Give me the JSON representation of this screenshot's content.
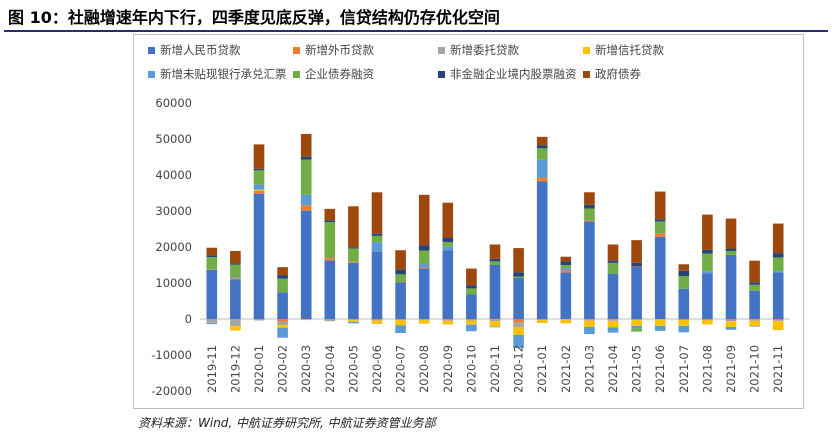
{
  "title": "图 10：社融增速年内下行，四季度见底反弹，信贷结构仍存优化空间",
  "source": "资料来源：Wind, 中航证券研究所, 中航证券资管业务部",
  "chart_data": {
    "type": "bar",
    "stacked": true,
    "ylim": [
      -20000,
      60000
    ],
    "yticks": [
      -20000,
      -10000,
      0,
      10000,
      20000,
      30000,
      40000,
      50000,
      60000
    ],
    "ytick_labels": [
      "-20000",
      "-10000",
      "0",
      "10000",
      "20000",
      "30000",
      "40000",
      "50000",
      "60000"
    ],
    "legend_position": "top",
    "categories": [
      "2019-11",
      "2019-12",
      "2020-01",
      "2020-02",
      "2020-03",
      "2020-04",
      "2020-05",
      "2020-06",
      "2020-07",
      "2020-08",
      "2020-09",
      "2020-10",
      "2020-11",
      "2020-12",
      "2021-01",
      "2021-02",
      "2021-03",
      "2021-04",
      "2021-05",
      "2021-06",
      "2021-07",
      "2021-08",
      "2021-09",
      "2021-10",
      "2021-11"
    ],
    "series": [
      {
        "name": "新增人民币贷款",
        "color": "#4472c4",
        "values": [
          13700,
          11000,
          34800,
          7400,
          30100,
          16300,
          15600,
          18700,
          10200,
          14000,
          19100,
          6800,
          15000,
          11400,
          38200,
          12900,
          27100,
          12600,
          14500,
          22800,
          8400,
          12700,
          17800,
          7800,
          12900
        ]
      },
      {
        "name": "新增外币贷款",
        "color": "#ed7d31",
        "values": [
          100,
          300,
          800,
          -700,
          1500,
          600,
          300,
          -100,
          100,
          300,
          -100,
          -100,
          -200,
          -1000,
          1100,
          600,
          300,
          -200,
          100,
          1000,
          -100,
          -100,
          -400,
          -200,
          -300
        ]
      },
      {
        "name": "新增委托贷款",
        "color": "#a5a5a5",
        "values": [
          -900,
          -2000,
          -400,
          -1000,
          -100,
          -300,
          -300,
          -300,
          -300,
          -300,
          -400,
          -300,
          -400,
          -1300,
          -300,
          -200,
          -400,
          -300,
          -300,
          -200,
          -200,
          -200,
          -200,
          -300,
          -300
        ]
      },
      {
        "name": "新增信托贷款",
        "color": "#ffc000",
        "values": [
          -100,
          -1200,
          300,
          -700,
          -200,
          -100,
          -500,
          -1000,
          -1500,
          -1000,
          -1000,
          -1200,
          -1500,
          -2100,
          -800,
          -1000,
          -1800,
          -1800,
          -1600,
          -1700,
          -1600,
          -1200,
          -1600,
          -1500,
          -2500
        ]
      },
      {
        "name": "新增未贴现银行承兑汇票",
        "color": "#5b9bd5",
        "values": [
          -400,
          300,
          1500,
          -2800,
          2900,
          -200,
          -400,
          2600,
          -2100,
          1000,
          1000,
          -1800,
          -200,
          -3600,
          4900,
          600,
          -2000,
          -1500,
          -700,
          -1400,
          -1800,
          600,
          -800,
          -100,
          400
        ]
      },
      {
        "name": "企业债券融资",
        "color": "#70ad47",
        "values": [
          3400,
          3500,
          3900,
          3800,
          9800,
          10000,
          3700,
          1800,
          2100,
          3700,
          1300,
          1700,
          1000,
          400,
          3200,
          900,
          3300,
          3000,
          -900,
          3300,
          3500,
          4900,
          1100,
          1700,
          3800
        ]
      },
      {
        "name": "非金融企业境内股票融资",
        "color": "#264478",
        "values": [
          500,
          300,
          400,
          1000,
          800,
          500,
          300,
          600,
          1300,
          1500,
          1100,
          900,
          700,
          1200,
          900,
          1000,
          1000,
          600,
          1000,
          600,
          1500,
          1000,
          700,
          700,
          1200
        ]
      },
      {
        "name": "政府债券",
        "color": "#9e480e",
        "values": [
          2100,
          3500,
          6800,
          2200,
          6300,
          3200,
          11400,
          11500,
          5400,
          14000,
          9800,
          4600,
          4000,
          6700,
          2300,
          1300,
          3500,
          4500,
          6300,
          7700,
          1800,
          9800,
          8300,
          6000,
          8200
        ]
      }
    ]
  }
}
